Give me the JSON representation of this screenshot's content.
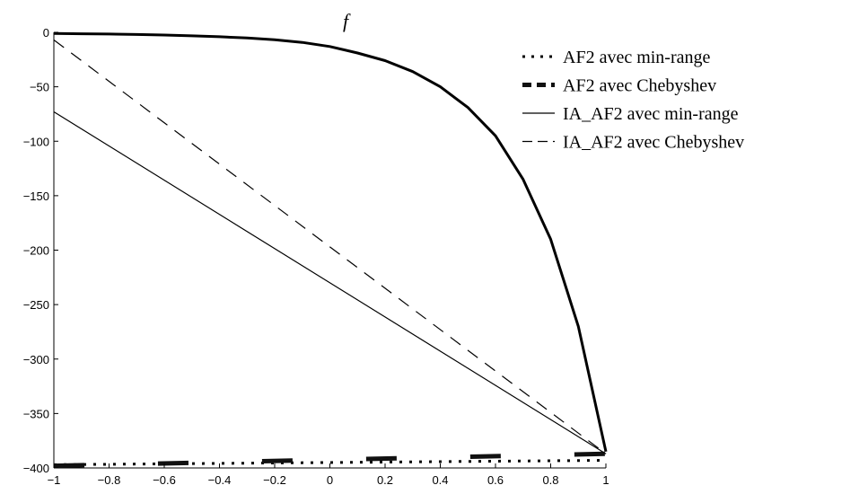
{
  "chart_data": {
    "type": "line",
    "title": "f",
    "xlabel": "",
    "ylabel": "",
    "xlim": [
      -1,
      1
    ],
    "ylim": [
      -400,
      0
    ],
    "xticks": [
      -1,
      -0.8,
      -0.6,
      -0.4,
      -0.2,
      0,
      0.2,
      0.4,
      0.6,
      0.8,
      1
    ],
    "xtick_labels": [
      "−1",
      "−0.8",
      "−0.6",
      "−0.4",
      "−0.2",
      "0",
      "0.2",
      "0.4",
      "0.6",
      "0.8",
      "1"
    ],
    "yticks": [
      0,
      -50,
      -100,
      -150,
      -200,
      -250,
      -300,
      -350,
      -400
    ],
    "ytick_labels": [
      "0",
      "−50",
      "−100",
      "−150",
      "−200",
      "−250",
      "−300",
      "−350",
      "−400"
    ],
    "grid": false,
    "legend_position": "top-right",
    "series": [
      {
        "name": "AF2 avec min-range",
        "style": "dotted-thick",
        "x": [
          -1,
          1
        ],
        "y": [
          -397,
          -393
        ]
      },
      {
        "name": "AF2 avec Chebyshev",
        "style": "dashed-thick",
        "x": [
          -1,
          1
        ],
        "y": [
          -398,
          -387
        ]
      },
      {
        "name": "IA_AF2 avec min-range",
        "style": "solid-thin",
        "x": [
          -1,
          1
        ],
        "y": [
          -73,
          -387
        ]
      },
      {
        "name": "IA_AF2 avec Chebyshev",
        "style": "dashed-thin",
        "x": [
          -1,
          1
        ],
        "y": [
          -7,
          -387
        ]
      },
      {
        "name": "",
        "style": "solid-thick",
        "x": [
          -1,
          -0.9,
          -0.8,
          -0.7,
          -0.6,
          -0.5,
          -0.4,
          -0.3,
          -0.2,
          -0.1,
          0,
          0.1,
          0.2,
          0.3,
          0.4,
          0.5,
          0.6,
          0.7,
          0.8,
          0.9,
          1
        ],
        "y": [
          -1,
          -1.3,
          -1.6,
          -2,
          -2.5,
          -3.2,
          -4,
          -5.2,
          -6.8,
          -9.2,
          -13,
          -19,
          -26,
          -36,
          -50,
          -69,
          -95,
          -135,
          -190,
          -270,
          -385
        ]
      }
    ]
  }
}
